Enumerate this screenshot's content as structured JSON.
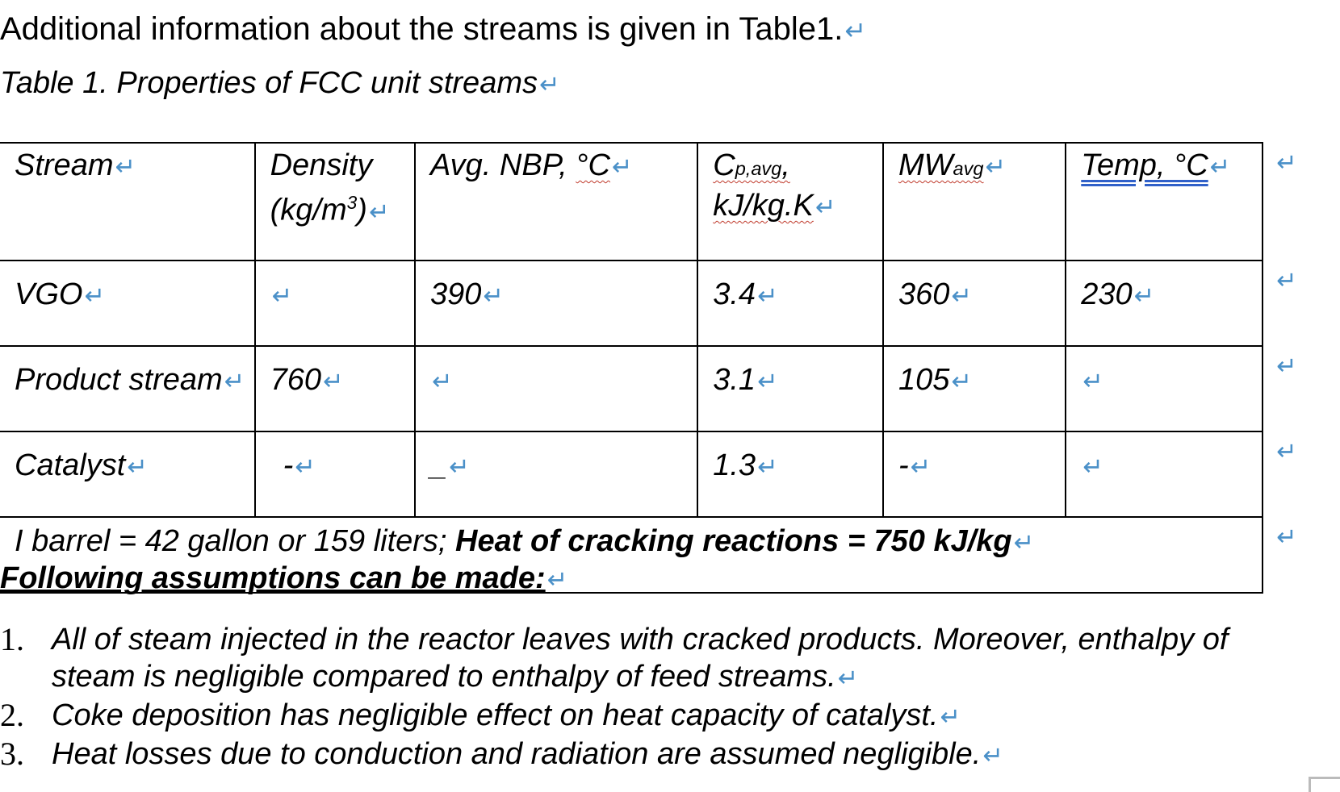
{
  "intro": "Additional information about the streams is given in Table1.",
  "caption": "Table 1. Properties of FCC unit streams",
  "table": {
    "headers": {
      "stream": "Stream",
      "density_line1": "Density",
      "density_unit_pre": "(kg/m",
      "density_unit_sup": "3",
      "density_unit_post": ")",
      "nbp_pre": "Avg. NBP, ",
      "nbp_unit": "°C",
      "cp_base": "C",
      "cp_sub": "p,avg",
      "cp_comma": ",",
      "cp_unit": "kJ/kg.K",
      "mw_base": "MW",
      "mw_sub": "avg",
      "temp": "Temp, °C"
    },
    "rows": [
      {
        "stream": "VGO",
        "density": "",
        "nbp": "390",
        "cp": "3.4",
        "mw": "360",
        "temp": "230"
      },
      {
        "stream": "Product stream",
        "density": "760",
        "nbp": "",
        "cp": "3.1",
        "mw": "105",
        "temp": ""
      },
      {
        "stream": "Catalyst",
        "density": "-",
        "nbp": "_",
        "cp": "1.3",
        "mw": "-",
        "temp": ""
      }
    ],
    "note_plain": "I barrel = 42 gallon or 159 liters; ",
    "note_bold": "Heat of cracking reactions = 750 kJ/kg"
  },
  "assumptions": {
    "title": "Following assumptions can be made:",
    "items": [
      {
        "num": "1.",
        "text": "All of steam injected in the reactor leaves with cracked products. Moreover, enthalpy of steam is negligible compared to enthalpy of feed streams."
      },
      {
        "num": "2.",
        "text": "Coke deposition has negligible effect on heat capacity of catalyst."
      },
      {
        "num": "3.",
        "text": "Heat losses due to conduction and radiation are assumed negligible."
      }
    ]
  },
  "paragraph_mark": "↵"
}
